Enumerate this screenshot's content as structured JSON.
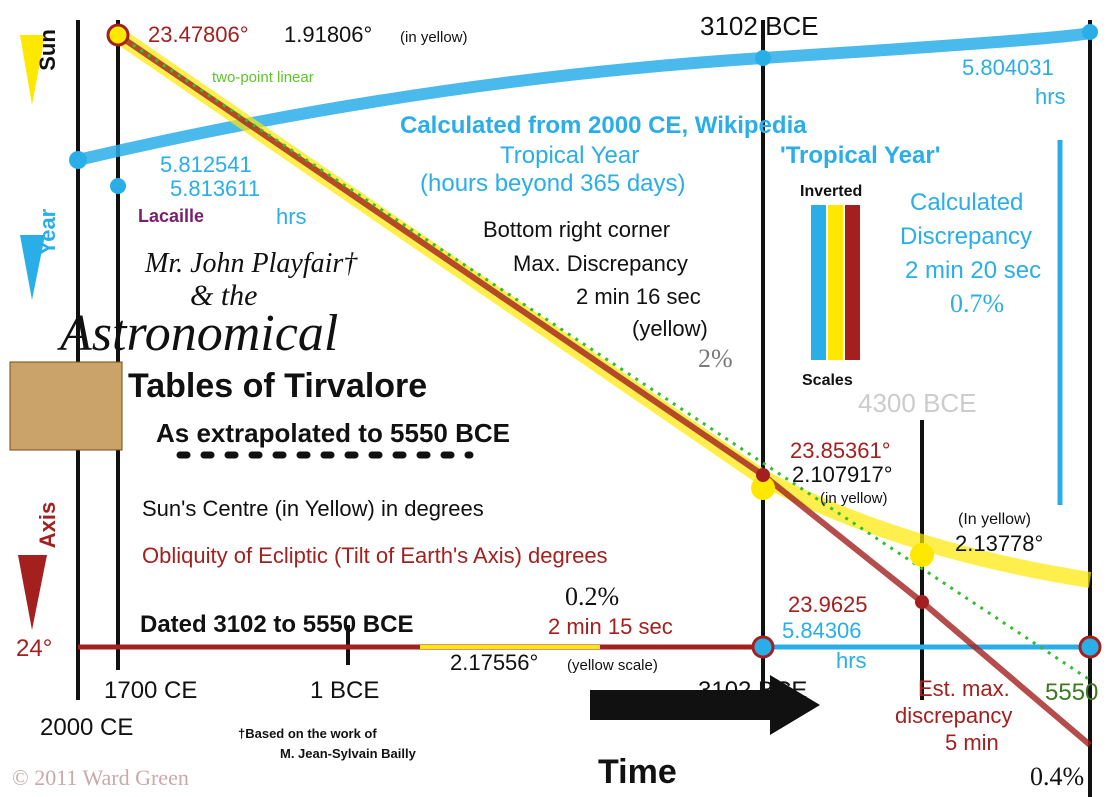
{
  "axis_labels": {
    "sun": "Sun",
    "year": "Year",
    "axis": "Axis"
  },
  "top": {
    "obliquity_start": "23.47806°",
    "sun_start": "1.91806°",
    "sun_start_note": "(in yellow)",
    "fit": "two-point linear",
    "date_top": "3102 BCE",
    "year_end": "5.804031",
    "year_end_unit": "hrs"
  },
  "calc": {
    "line1": "Calculated from 2000 CE, Wikipedia",
    "line2": "Tropical Year",
    "line2b": "'Tropical Year'",
    "line3": "(hours beyond 365 days)"
  },
  "lacaille": {
    "v1": "5.812541",
    "v2": "5.813611",
    "name": "Lacaille",
    "unit": "hrs"
  },
  "scales": {
    "top": "Inverted",
    "bottom": "Scales"
  },
  "discrepancy": {
    "l1": "Calculated",
    "l2": "Discrepancy",
    "l3": "2 min 20 sec",
    "pct": "0.7%"
  },
  "corner": {
    "l1": "Bottom right corner",
    "l2": "Max. Discrepancy",
    "l3": "2 min 16 sec",
    "l4": "(yellow)",
    "pct": "2%"
  },
  "title": {
    "l1": "Mr. John Playfair†",
    "l2": "& the",
    "l3": "Astronomical",
    "l4": "Tables of Tirvalore",
    "l5": "As extrapolated to 5550 BCE"
  },
  "mid": {
    "date_4300": "4300 BCE",
    "obl_3102": "23.85361°",
    "sun_3102": "2.107917°",
    "sun_3102_note": "(in yellow)",
    "sun_legend": "Sun's Centre (in Yellow) in degrees",
    "in_yellow": "(In yellow)",
    "sun_4300": "2.13778°",
    "obl_legend": "Obliquity of Ecliptic (Tilt of Earth's Axis) degrees",
    "pct_small": "0.2%",
    "min15": "2 min 15 sec",
    "obl_4300": "23.9625",
    "year_4300": "5.84306",
    "year_4300_unit": "hrs"
  },
  "bottom": {
    "dated": "Dated 3102 to 5550 BCE",
    "deg24": "24°",
    "yellow_scale_val": "2.17556°",
    "yellow_scale_note": "(yellow scale)",
    "t1700": "1700 CE",
    "t1": "1 BCE",
    "t3102": "3102 BCE",
    "t5550": "5550",
    "t2000": "2000 CE",
    "credit1": "†Based on the work of",
    "credit2": "M. Jean-Sylvain Bailly",
    "time": "Time",
    "est1": "Est. max.",
    "est2": "discrepancy",
    "est3": "5 min",
    "est_pct": "0.4%",
    "copyright": "© 2011 Ward Green"
  }
}
